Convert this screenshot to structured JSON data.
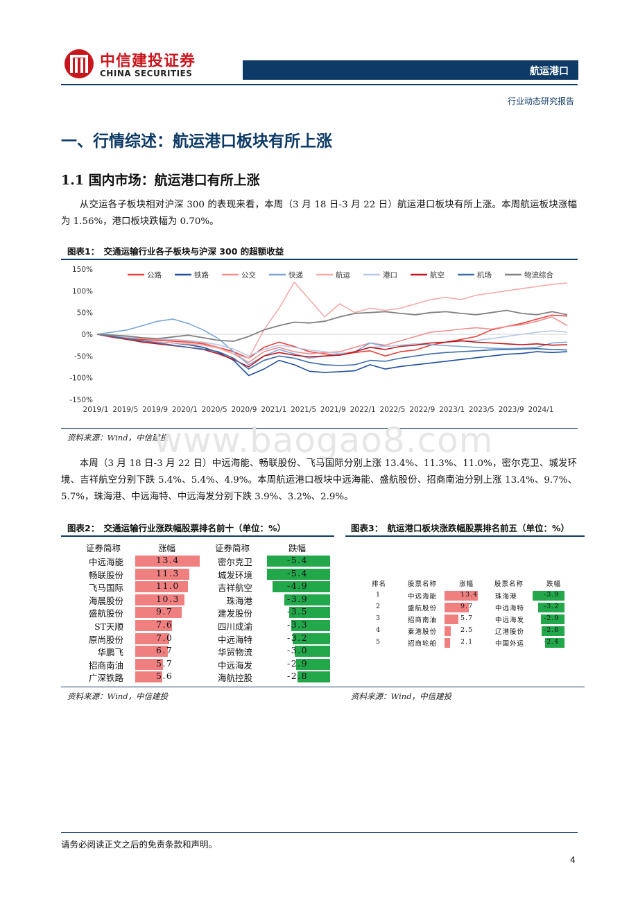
{
  "header": {
    "logo_cn": "中信建投证券",
    "logo_en": "CHINA SECURITIES",
    "sector": "航运港口",
    "report_type": "行业动态研究报告",
    "brand_color": "#c8161d",
    "bar_color": "#0d3a66"
  },
  "section_title": "一、行情综述：航运港口板块有所上涨",
  "subsection_title": "1.1 国内市场：航运港口有所上涨",
  "paragraph1": "从交运各子板块相对沪深 300 的表现来看，本周（3 月 18 日-3 月 22 日）航运港口板块有所上涨。本周航运板块涨幅为 1.56%，港口板块跌幅为 0.70%。",
  "paragraph2": "本周（3 月 18 日-3 月 22 日）中远海能、畅联股份、飞马国际分别上涨 13.4%、11.3%、11.0%，密尔克卫、城发环境、吉祥航空分别下跌 5.4%、5.4%、4.9%。本周航运港口板块中远海能、盛航股份、招商南油分别上涨 13.4%、9.7%、5.7%，珠海港、中远海特、中远海发分别下跌 3.9%、3.2%、2.9%。",
  "figure1": {
    "title": "图表1：　交通运输行业各子板块与沪深 300 的超额收益",
    "source": "资料来源：Wind，中信建投"
  },
  "figure2": {
    "title": "图表2：　交通运输行业涨跌幅股票排名前十（单位：%）",
    "source": "资料来源：Wind，中信建投",
    "headers": [
      "证券简称",
      "涨幅",
      "证券简称",
      "跌幅"
    ],
    "rows": [
      {
        "up_name": "中远海能",
        "up": 13.4,
        "down_name": "密尔克卫",
        "down": -5.4
      },
      {
        "up_name": "畅联股份",
        "up": 11.3,
        "down_name": "城发环境",
        "down": -5.4
      },
      {
        "up_name": "飞马国际",
        "up": 11.0,
        "down_name": "吉祥航空",
        "down": -4.9
      },
      {
        "up_name": "海晨股份",
        "up": 10.3,
        "down_name": "珠海港",
        "down": -3.9
      },
      {
        "up_name": "盛航股份",
        "up": 9.7,
        "down_name": "建发股份",
        "down": -3.5
      },
      {
        "up_name": "ST天顺",
        "up": 7.6,
        "down_name": "四川成渝",
        "down": -3.3
      },
      {
        "up_name": "原尚股份",
        "up": 7.0,
        "down_name": "中远海特",
        "down": -3.2
      },
      {
        "up_name": "华鹏飞",
        "up": 6.7,
        "down_name": "华贸物流",
        "down": -3.0
      },
      {
        "up_name": "招商南油",
        "up": 5.7,
        "down_name": "中远海发",
        "down": -2.9
      },
      {
        "up_name": "广深铁路",
        "up": 5.6,
        "down_name": "海航控股",
        "down": -2.8
      }
    ],
    "up_color": "#f08080",
    "down_color": "#22a74a"
  },
  "figure3": {
    "title": "图表3：　航运港口板块涨跌幅股票排名前五（单位：%）",
    "source": "资料来源：Wind，中信建投",
    "headers": [
      "排名",
      "股票名称",
      "涨幅",
      "股票名称",
      "跌幅"
    ],
    "rows": [
      {
        "rank": "1",
        "up_name": "中远海能",
        "up": 13.4,
        "down_name": "珠海港",
        "down": -3.9
      },
      {
        "rank": "2",
        "up_name": "盛航股份",
        "up": 9.7,
        "down_name": "中远海特",
        "down": -3.2
      },
      {
        "rank": "3",
        "up_name": "招商南油",
        "up": 5.7,
        "down_name": "中远海发",
        "down": -2.9
      },
      {
        "rank": "4",
        "up_name": "秦港股份",
        "up": 2.5,
        "down_name": "辽港股份",
        "down": -2.8
      },
      {
        "rank": "5",
        "up_name": "招商轮船",
        "up": 2.1,
        "down_name": "中国外运",
        "down": -2.4
      }
    ]
  },
  "chart_data": {
    "type": "line",
    "title": "",
    "xlabel": "",
    "ylabel": "",
    "ylim": [
      -150,
      150
    ],
    "y_ticks": [
      "150%",
      "100%",
      "50%",
      "0%",
      "-50%",
      "-100%",
      "-150%"
    ],
    "x_ticks": [
      "2019/1",
      "2019/5",
      "2019/9",
      "2020/1",
      "2020/5",
      "2020/9",
      "2021/1",
      "2021/5",
      "2021/9",
      "2022/1",
      "2022/5",
      "2022/9",
      "2023/1",
      "2023/5",
      "2023/9",
      "2024/1"
    ],
    "grid": false,
    "legend": "top",
    "series": [
      {
        "name": "公路",
        "color": "#e8403a",
        "dash": "",
        "width": 1.6,
        "x": [
          0,
          2,
          4,
          6,
          8,
          10,
          12,
          14,
          16,
          18,
          20,
          22,
          24,
          26,
          28,
          30,
          32,
          34,
          36,
          38,
          40,
          42,
          44,
          46,
          48,
          50,
          52,
          54,
          56,
          58,
          60,
          62
        ],
        "values": [
          0,
          -3,
          -8,
          -12,
          -14,
          -16,
          -18,
          -22,
          -30,
          -40,
          -55,
          -30,
          -18,
          -28,
          -40,
          -45,
          -48,
          -42,
          -38,
          -50,
          -40,
          -36,
          -25,
          -18,
          -12,
          -5,
          10,
          18,
          25,
          35,
          44,
          42
        ]
      },
      {
        "name": "铁路",
        "color": "#1f4e9c",
        "dash": "",
        "width": 1.6,
        "x": [
          0,
          2,
          4,
          6,
          8,
          10,
          12,
          14,
          16,
          18,
          20,
          22,
          24,
          26,
          28,
          30,
          32,
          34,
          36,
          38,
          40,
          42,
          44,
          46,
          48,
          50,
          52,
          54,
          56,
          58,
          60,
          62
        ],
        "values": [
          0,
          -5,
          -10,
          -15,
          -18,
          -20,
          -24,
          -30,
          -42,
          -60,
          -95,
          -80,
          -60,
          -70,
          -85,
          -88,
          -86,
          -84,
          -70,
          -80,
          -74,
          -70,
          -66,
          -62,
          -58,
          -54,
          -50,
          -46,
          -44,
          -40,
          -42,
          -40
        ]
      },
      {
        "name": "公交",
        "color": "#f28e8e",
        "dash": "",
        "width": 1.6,
        "x": [
          0,
          2,
          4,
          6,
          8,
          10,
          12,
          14,
          16,
          18,
          20,
          22,
          24,
          26,
          28,
          30,
          32,
          34,
          36,
          38,
          40,
          42,
          44,
          46,
          48,
          50,
          52,
          54,
          56,
          58,
          60,
          62
        ],
        "values": [
          0,
          -4,
          -8,
          -10,
          -12,
          -14,
          -16,
          -20,
          -30,
          -45,
          -65,
          -40,
          -30,
          -40,
          -45,
          -42,
          -40,
          -30,
          -20,
          -25,
          -15,
          -5,
          5,
          8,
          12,
          15,
          12,
          18,
          22,
          30,
          40,
          20
        ]
      },
      {
        "name": "快递",
        "color": "#7aa6d6",
        "dash": "",
        "width": 1.6,
        "x": [
          0,
          2,
          4,
          6,
          8,
          10,
          12,
          14,
          16,
          18,
          20,
          22,
          24,
          26,
          28,
          30,
          32,
          34,
          36,
          38,
          40,
          42,
          44,
          46,
          48,
          50,
          52,
          54,
          56,
          58,
          60,
          62
        ],
        "values": [
          0,
          5,
          10,
          20,
          30,
          35,
          25,
          10,
          -10,
          -40,
          -70,
          -50,
          -35,
          -45,
          -55,
          -50,
          -45,
          -40,
          -20,
          -28,
          -25,
          -22,
          -24,
          -26,
          -28,
          -30,
          -32,
          -33,
          -32,
          -30,
          -20,
          -18
        ]
      },
      {
        "name": "航运",
        "color": "#f5a9a9",
        "dash": "",
        "width": 1.6,
        "x": [
          0,
          2,
          4,
          6,
          8,
          10,
          12,
          14,
          16,
          18,
          20,
          22,
          24,
          26,
          28,
          30,
          32,
          34,
          36,
          38,
          40,
          42,
          44,
          46,
          48,
          50,
          52,
          54,
          56,
          58,
          60,
          62
        ],
        "values": [
          0,
          -8,
          -12,
          -15,
          -18,
          -20,
          -22,
          -25,
          -32,
          -45,
          -55,
          10,
          60,
          120,
          80,
          40,
          70,
          50,
          60,
          55,
          60,
          70,
          80,
          85,
          80,
          90,
          95,
          100,
          105,
          110,
          115,
          118
        ]
      },
      {
        "name": "港口",
        "color": "#b7c9e6",
        "dash": "",
        "width": 1.6,
        "x": [
          0,
          2,
          4,
          6,
          8,
          10,
          12,
          14,
          16,
          18,
          20,
          22,
          24,
          26,
          28,
          30,
          32,
          34,
          36,
          38,
          40,
          42,
          44,
          46,
          48,
          50,
          52,
          54,
          56,
          58,
          60,
          62
        ],
        "values": [
          0,
          -3,
          -6,
          -8,
          -10,
          -12,
          -14,
          -18,
          -24,
          -34,
          -50,
          -35,
          -25,
          -30,
          -36,
          -40,
          -44,
          -40,
          -30,
          -28,
          -25,
          -22,
          -20,
          -18,
          -16,
          -14,
          -10,
          -5,
          0,
          5,
          8,
          5
        ]
      },
      {
        "name": "航空",
        "color": "#c0161c",
        "dash": "",
        "width": 1.6,
        "x": [
          0,
          2,
          4,
          6,
          8,
          10,
          12,
          14,
          16,
          18,
          20,
          22,
          24,
          26,
          28,
          30,
          32,
          34,
          36,
          38,
          40,
          42,
          44,
          46,
          48,
          50,
          52,
          54,
          56,
          58,
          60,
          62
        ],
        "values": [
          0,
          -6,
          -12,
          -18,
          -22,
          -26,
          -30,
          -35,
          -45,
          -58,
          -75,
          -50,
          -42,
          -48,
          -52,
          -50,
          -48,
          -40,
          -30,
          -35,
          -28,
          -25,
          -20,
          -18,
          -15,
          -18,
          -20,
          -22,
          -24,
          -22,
          -25,
          -24
        ]
      },
      {
        "name": "机场",
        "color": "#3d6ca8",
        "dash": "",
        "width": 1.6,
        "x": [
          0,
          2,
          4,
          6,
          8,
          10,
          12,
          14,
          16,
          18,
          20,
          22,
          24,
          26,
          28,
          30,
          32,
          34,
          36,
          38,
          40,
          42,
          44,
          46,
          48,
          50,
          52,
          54,
          56,
          58,
          60,
          62
        ],
        "values": [
          0,
          -5,
          -10,
          -15,
          -20,
          -25,
          -30,
          -34,
          -40,
          -55,
          -80,
          -60,
          -50,
          -55,
          -65,
          -70,
          -72,
          -70,
          -60,
          -62,
          -55,
          -50,
          -45,
          -42,
          -40,
          -38,
          -36,
          -35,
          -34,
          -33,
          -35,
          -36
        ]
      },
      {
        "name": "物流综合",
        "color": "#808080",
        "dash": "",
        "width": 1.8,
        "x": [
          0,
          2,
          4,
          6,
          8,
          10,
          12,
          14,
          16,
          18,
          20,
          22,
          24,
          26,
          28,
          30,
          32,
          34,
          36,
          38,
          40,
          42,
          44,
          46,
          48,
          50,
          52,
          54,
          56,
          58,
          60,
          62
        ],
        "values": [
          0,
          -2,
          -4,
          -8,
          -10,
          -6,
          -2,
          -8,
          -14,
          -16,
          -5,
          10,
          20,
          28,
          26,
          30,
          40,
          48,
          50,
          52,
          48,
          45,
          50,
          52,
          48,
          45,
          50,
          55,
          48,
          45,
          52,
          45
        ]
      }
    ]
  }
}
